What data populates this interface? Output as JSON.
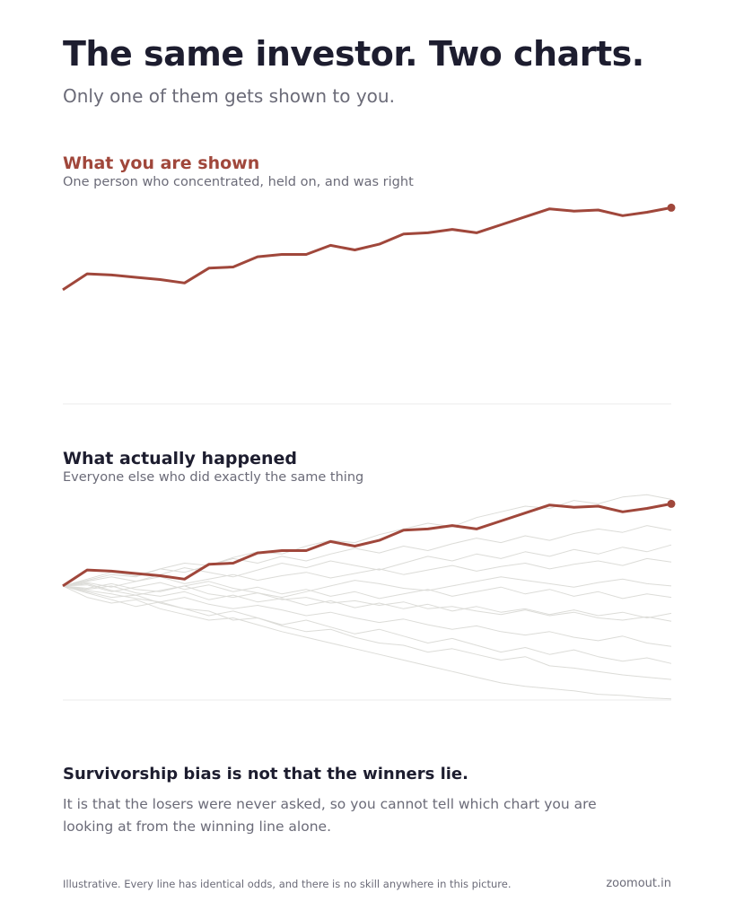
{
  "header": {
    "title": "The same investor. Two charts.",
    "subtitle": "Only one of them gets shown to you."
  },
  "chart_data": [
    {
      "type": "line",
      "title": "What you are shown",
      "title_color": "#a0473b",
      "subtitle": "One person who concentrated, held on, and was right",
      "ylim": [
        0,
        1.81
      ],
      "series": [
        {
          "color": "#a0473b",
          "end_marker": true,
          "values": [
            1.0,
            1.14,
            1.13,
            1.11,
            1.09,
            1.06,
            1.19,
            1.2,
            1.29,
            1.31,
            1.31,
            1.39,
            1.35,
            1.4,
            1.49,
            1.5,
            1.53,
            1.5,
            1.57,
            1.64,
            1.71,
            1.69,
            1.7,
            1.65,
            1.68,
            1.72
          ]
        }
      ]
    },
    {
      "type": "line",
      "title": "What actually happened",
      "title_color": "#1d1d2f",
      "subtitle": "Everyone else who did exactly the same thing",
      "ylim": [
        0,
        1.81
      ],
      "series": [
        {
          "color": "#dcdcd8",
          "values": [
            1,
            0.95,
            0.9,
            0.92,
            0.85,
            0.8,
            0.78,
            0.7,
            0.72,
            0.65,
            0.6,
            0.62,
            0.55,
            0.5,
            0.48,
            0.42,
            0.45,
            0.4,
            0.35,
            0.38,
            0.3,
            0.28,
            0.25,
            0.22,
            0.2,
            0.18
          ]
        },
        {
          "color": "#dcdcd8",
          "values": [
            1,
            1.05,
            1.1,
            1.08,
            1.15,
            1.2,
            1.18,
            1.25,
            1.3,
            1.28,
            1.35,
            1.4,
            1.38,
            1.45,
            1.5,
            1.55,
            1.52,
            1.6,
            1.65,
            1.7,
            1.68,
            1.75,
            1.72,
            1.78,
            1.8,
            1.76
          ]
        },
        {
          "color": "#dcdcd8",
          "values": [
            1,
            0.98,
            1.02,
            0.97,
            0.95,
            1.0,
            0.93,
            0.9,
            0.94,
            0.88,
            0.9,
            0.85,
            0.87,
            0.83,
            0.86,
            0.8,
            0.82,
            0.78,
            0.75,
            0.79,
            0.74,
            0.77,
            0.72,
            0.7,
            0.73,
            0.69
          ]
        },
        {
          "color": "#dcdcd8",
          "values": [
            1,
            1.03,
            0.99,
            1.04,
            1.08,
            1.02,
            1.06,
            1.1,
            1.05,
            1.09,
            1.12,
            1.07,
            1.11,
            1.15,
            1.1,
            1.14,
            1.18,
            1.13,
            1.17,
            1.2,
            1.15,
            1.19,
            1.22,
            1.18,
            1.24,
            1.21
          ]
        },
        {
          "color": "#dcdcd8",
          "values": [
            1,
            0.9,
            0.85,
            0.88,
            0.8,
            0.75,
            0.7,
            0.72,
            0.66,
            0.6,
            0.55,
            0.5,
            0.45,
            0.4,
            0.35,
            0.3,
            0.25,
            0.2,
            0.15,
            0.12,
            0.1,
            0.08,
            0.05,
            0.04,
            0.02,
            0.01
          ]
        },
        {
          "color": "#dcdcd8",
          "values": [
            1,
            1.02,
            0.96,
            0.92,
            0.96,
            1.0,
            1.04,
            0.98,
            0.94,
            0.9,
            0.95,
            1.0,
            1.05,
            1.02,
            0.98,
            0.96,
            1.0,
            1.04,
            1.08,
            1.05,
            1.02,
            0.99,
            1.03,
            1.06,
            1.02,
            1.0
          ]
        },
        {
          "color": "#dcdcd8",
          "values": [
            1,
            0.96,
            0.93,
            0.89,
            0.86,
            0.9,
            0.84,
            0.8,
            0.83,
            0.79,
            0.74,
            0.77,
            0.72,
            0.68,
            0.71,
            0.66,
            0.62,
            0.65,
            0.6,
            0.57,
            0.6,
            0.55,
            0.52,
            0.56,
            0.5,
            0.47
          ]
        },
        {
          "color": "#dcdcd8",
          "values": [
            1,
            1.06,
            1.12,
            1.09,
            1.15,
            1.12,
            1.18,
            1.24,
            1.2,
            1.26,
            1.22,
            1.28,
            1.33,
            1.29,
            1.35,
            1.31,
            1.37,
            1.42,
            1.38,
            1.44,
            1.4,
            1.46,
            1.5,
            1.47,
            1.53,
            1.49
          ]
        },
        {
          "color": "#dcdcd8",
          "values": [
            1,
            0.97,
            1.0,
            0.94,
            0.91,
            0.95,
            0.88,
            0.92,
            0.86,
            0.89,
            0.83,
            0.87,
            0.81,
            0.85,
            0.8,
            0.84,
            0.78,
            0.82,
            0.77,
            0.8,
            0.75,
            0.79,
            0.74,
            0.77,
            0.72,
            0.76
          ]
        },
        {
          "color": "#dcdcd8",
          "values": [
            1,
            1.01,
            0.95,
            0.99,
            1.03,
            0.97,
            1.01,
            0.95,
            0.99,
            0.93,
            0.97,
            0.91,
            0.95,
            0.89,
            0.93,
            0.97,
            0.91,
            0.95,
            0.99,
            0.93,
            0.97,
            0.91,
            0.95,
            0.89,
            0.93,
            0.9
          ]
        },
        {
          "color": "#dcdcd8",
          "values": [
            1,
            0.94,
            0.88,
            0.82,
            0.86,
            0.8,
            0.74,
            0.78,
            0.72,
            0.66,
            0.7,
            0.64,
            0.58,
            0.62,
            0.56,
            0.5,
            0.54,
            0.48,
            0.42,
            0.46,
            0.4,
            0.44,
            0.38,
            0.34,
            0.37,
            0.32
          ]
        },
        {
          "color": "#dcdcd8",
          "values": [
            1,
            1.04,
            1.08,
            1.04,
            1.1,
            1.16,
            1.12,
            1.08,
            1.14,
            1.2,
            1.16,
            1.22,
            1.18,
            1.14,
            1.2,
            1.26,
            1.22,
            1.28,
            1.24,
            1.3,
            1.26,
            1.32,
            1.28,
            1.34,
            1.3,
            1.36
          ]
        },
        {
          "color": "#a0473b",
          "end_marker": true,
          "values": [
            1.0,
            1.14,
            1.13,
            1.11,
            1.09,
            1.06,
            1.19,
            1.2,
            1.29,
            1.31,
            1.31,
            1.39,
            1.35,
            1.4,
            1.49,
            1.5,
            1.53,
            1.5,
            1.57,
            1.64,
            1.71,
            1.69,
            1.7,
            1.65,
            1.68,
            1.72
          ]
        }
      ]
    }
  ],
  "conclusion": {
    "title": "Survivorship bias is not that the winners lie.",
    "text": "It is that the losers were never asked, so you cannot tell which chart you are looking at from the winning line alone."
  },
  "footer": {
    "note": "Illustrative. Every line has identical odds, and there is no skill anywhere in this picture.",
    "source": "zoomout.in"
  }
}
